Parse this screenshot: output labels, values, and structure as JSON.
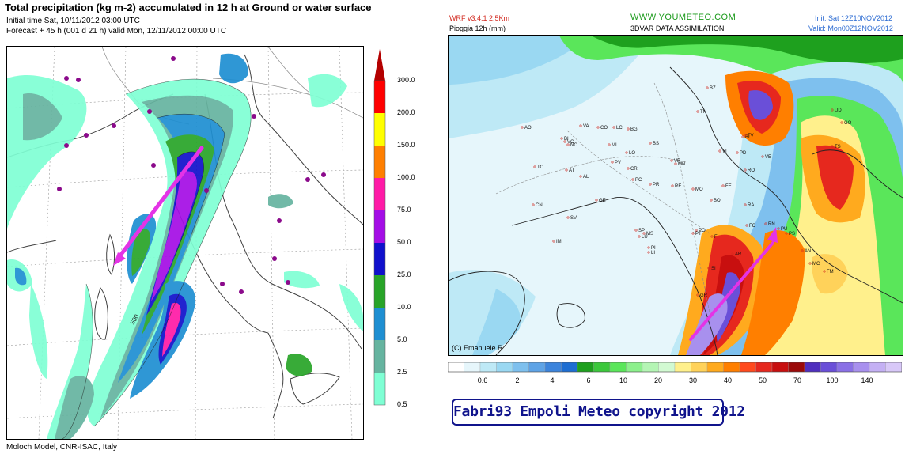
{
  "left_panel": {
    "title": "Total precipitation (kg m-2) accumulated in  12 h at Ground or water surface",
    "initial_time": "Initial time  Sat, 10/11/2012  03:00 UTC",
    "forecast": "Forecast  +  45 h  (001 d 21 h)  valid Mon, 12/11/2012 00:00 UTC",
    "credit": "Moloch Model, CNR-ISAC, Italy",
    "colorbar": {
      "ticks": [
        "300.0",
        "200.0",
        "150.0",
        "100.0",
        "75.0",
        "50.0",
        "25.0",
        "10.0",
        "5.0",
        "2.5",
        "0.5"
      ],
      "colors": [
        "#ff0000",
        "#ffff00",
        "#ff7f00",
        "#ff1aa6",
        "#a40de6",
        "#1010cc",
        "#28a428",
        "#1e8fd2",
        "#66b4a0",
        "#7fffd4"
      ],
      "top_arrow_color": "#b40000"
    },
    "contour_label": "500",
    "arrow_color": "#e433e6"
  },
  "right_panel": {
    "model": "WRF  v3.4.1  2.5Km",
    "variable": "Pioggia  12h  (mm)",
    "site": "WWW.YOUMETEO.COM",
    "assimilation": "3DVAR DATA ASSIMILATION",
    "init": "Init: Sat 12Z10NOV2012",
    "valid": "Valid: Mon00Z12NOV2012",
    "copyright": "(C) Emanuele R.",
    "colorbar": {
      "labels": [
        "0.6",
        "2",
        "4",
        "6",
        "10",
        "20",
        "30",
        "40",
        "50",
        "70",
        "100",
        "140"
      ],
      "colors": [
        "#ffffff",
        "#e6f6fb",
        "#bee9f6",
        "#9ad8f2",
        "#7ec0ee",
        "#5ea3e6",
        "#3c84dc",
        "#1e6ed2",
        "#1ea01e",
        "#3cc83c",
        "#5ae65a",
        "#8cf08c",
        "#b4f5b4",
        "#d2fad2",
        "#fff08c",
        "#ffd25a",
        "#ffaa1e",
        "#ff7f00",
        "#ff4a1e",
        "#e6281e",
        "#c80f0f",
        "#9b0a0a",
        "#4f2fbe",
        "#6a4fd8",
        "#8a70e6",
        "#a890ee",
        "#c4b0f4",
        "#d8c8f8"
      ]
    },
    "city_labels": [
      "BZ",
      "TN",
      "VR",
      "BL",
      "TV",
      "UD",
      "GO",
      "TS",
      "VE",
      "PD",
      "VI",
      "RO",
      "FE",
      "BO",
      "RA",
      "FC",
      "RN",
      "PS",
      "MO",
      "RE",
      "PR",
      "PC",
      "CR",
      "MN",
      "BS",
      "BG",
      "LC",
      "CO",
      "VA",
      "MI",
      "LO",
      "PV",
      "NO",
      "VC",
      "BI",
      "AO",
      "TO",
      "AT",
      "AL",
      "CN",
      "SV",
      "GE",
      "SP",
      "MS",
      "LU",
      "PT",
      "PO",
      "FI",
      "AR",
      "SI",
      "GR",
      "PI",
      "LI",
      "AN",
      "PU",
      "MC",
      "FM",
      "IM"
    ],
    "arrow_color": "#e433e6"
  },
  "banner": {
    "text": "Fabri93 Empoli Meteo copyright 2012",
    "color": "#10148c"
  }
}
